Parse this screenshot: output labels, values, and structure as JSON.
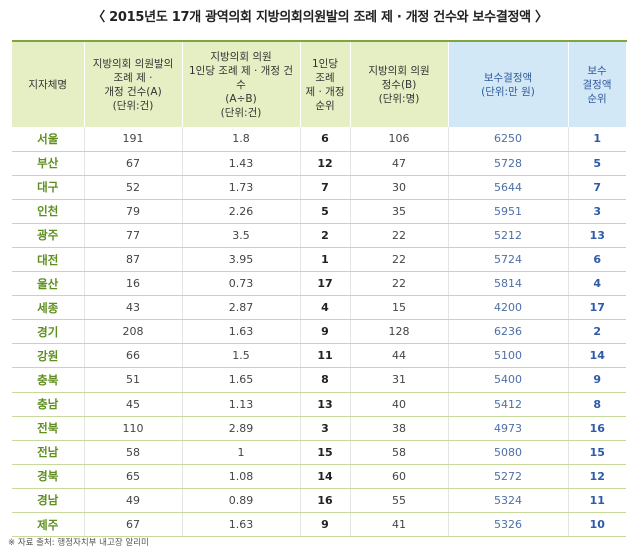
{
  "title": "〈 2015년도 17개 광역의회 지방의회의원발의 조례 제 · 개정 건수와 보수결정액 〉",
  "headers": [
    "지자체명",
    "지방의회 의원발의\n조례 제 ·\n개정 건수(A)\n(단위:건)",
    "지방의회 의원\n1인당 조례 제 · 개정 건수\n(A÷B)\n(단위:건)",
    "1인당\n조례\n제 · 개정\n순위",
    "지방의회 의원\n정수(B)\n(단위:명)",
    "보수결정액\n(단위:만 원)",
    "보수\n결정액\n순위"
  ],
  "rows": [
    [
      "서울",
      "191",
      "1.8",
      "6",
      "106",
      "6250",
      "1"
    ],
    [
      "부산",
      "67",
      "1.43",
      "12",
      "47",
      "5728",
      "5"
    ],
    [
      "대구",
      "52",
      "1.73",
      "7",
      "30",
      "5644",
      "7"
    ],
    [
      "인천",
      "79",
      "2.26",
      "5",
      "35",
      "5951",
      "3"
    ],
    [
      "광주",
      "77",
      "3.5",
      "2",
      "22",
      "5212",
      "13"
    ],
    [
      "대전",
      "87",
      "3.95",
      "1",
      "22",
      "5724",
      "6"
    ],
    [
      "울산",
      "16",
      "0.73",
      "17",
      "22",
      "5814",
      "4"
    ],
    [
      "세종",
      "43",
      "2.87",
      "4",
      "15",
      "4200",
      "17"
    ],
    [
      "경기",
      "208",
      "1.63",
      "9",
      "128",
      "6236",
      "2"
    ],
    [
      "강원",
      "66",
      "1.5",
      "11",
      "44",
      "5100",
      "14"
    ],
    [
      "충북",
      "51",
      "1.65",
      "8",
      "31",
      "5400",
      "9"
    ],
    [
      "충남",
      "45",
      "1.13",
      "13",
      "40",
      "5412",
      "8"
    ],
    [
      "전북",
      "110",
      "2.89",
      "3",
      "38",
      "4973",
      "16"
    ],
    [
      "전남",
      "58",
      "1",
      "15",
      "58",
      "5080",
      "15"
    ],
    [
      "경북",
      "65",
      "1.08",
      "14",
      "60",
      "5272",
      "12"
    ],
    [
      "경남",
      "49",
      "0.89",
      "16",
      "55",
      "5324",
      "11"
    ],
    [
      "제주",
      "67",
      "1.63",
      "9",
      "41",
      "5326",
      "10"
    ]
  ],
  "source": "※ 자료 출처: 행정자치부 내고장 알리미",
  "colors": {
    "header_green": "#e6efc4",
    "header_blue": "#d3e8f7",
    "region_green": "#5e8f1e",
    "rank_blue": "#2f5aa8"
  }
}
